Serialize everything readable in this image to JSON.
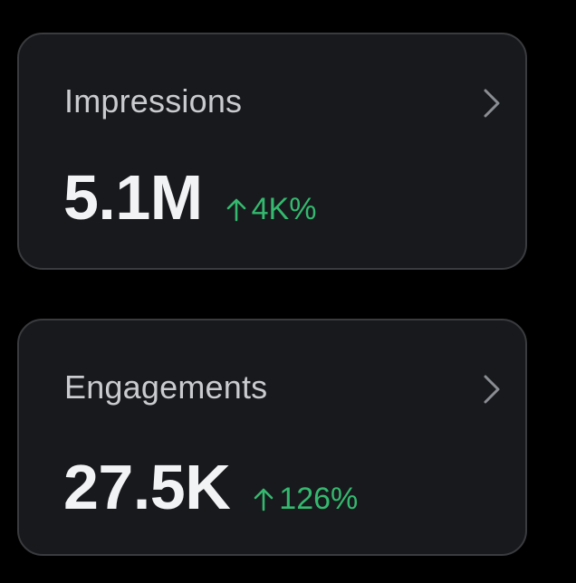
{
  "colors": {
    "background": "#000000",
    "card_background": "#18191c",
    "card_border": "#3a3b3e",
    "label": "#c9cbcf",
    "value": "#f2f3f5",
    "positive": "#34b96f",
    "chevron": "#8a8d93"
  },
  "cards": [
    {
      "label": "Impressions",
      "value": "5.1M",
      "delta": "4K%",
      "delta_direction": "up",
      "icon": "chevron-right-icon"
    },
    {
      "label": "Engagements",
      "value": "27.5K",
      "delta": "126%",
      "delta_direction": "up",
      "icon": "chevron-right-icon"
    }
  ]
}
